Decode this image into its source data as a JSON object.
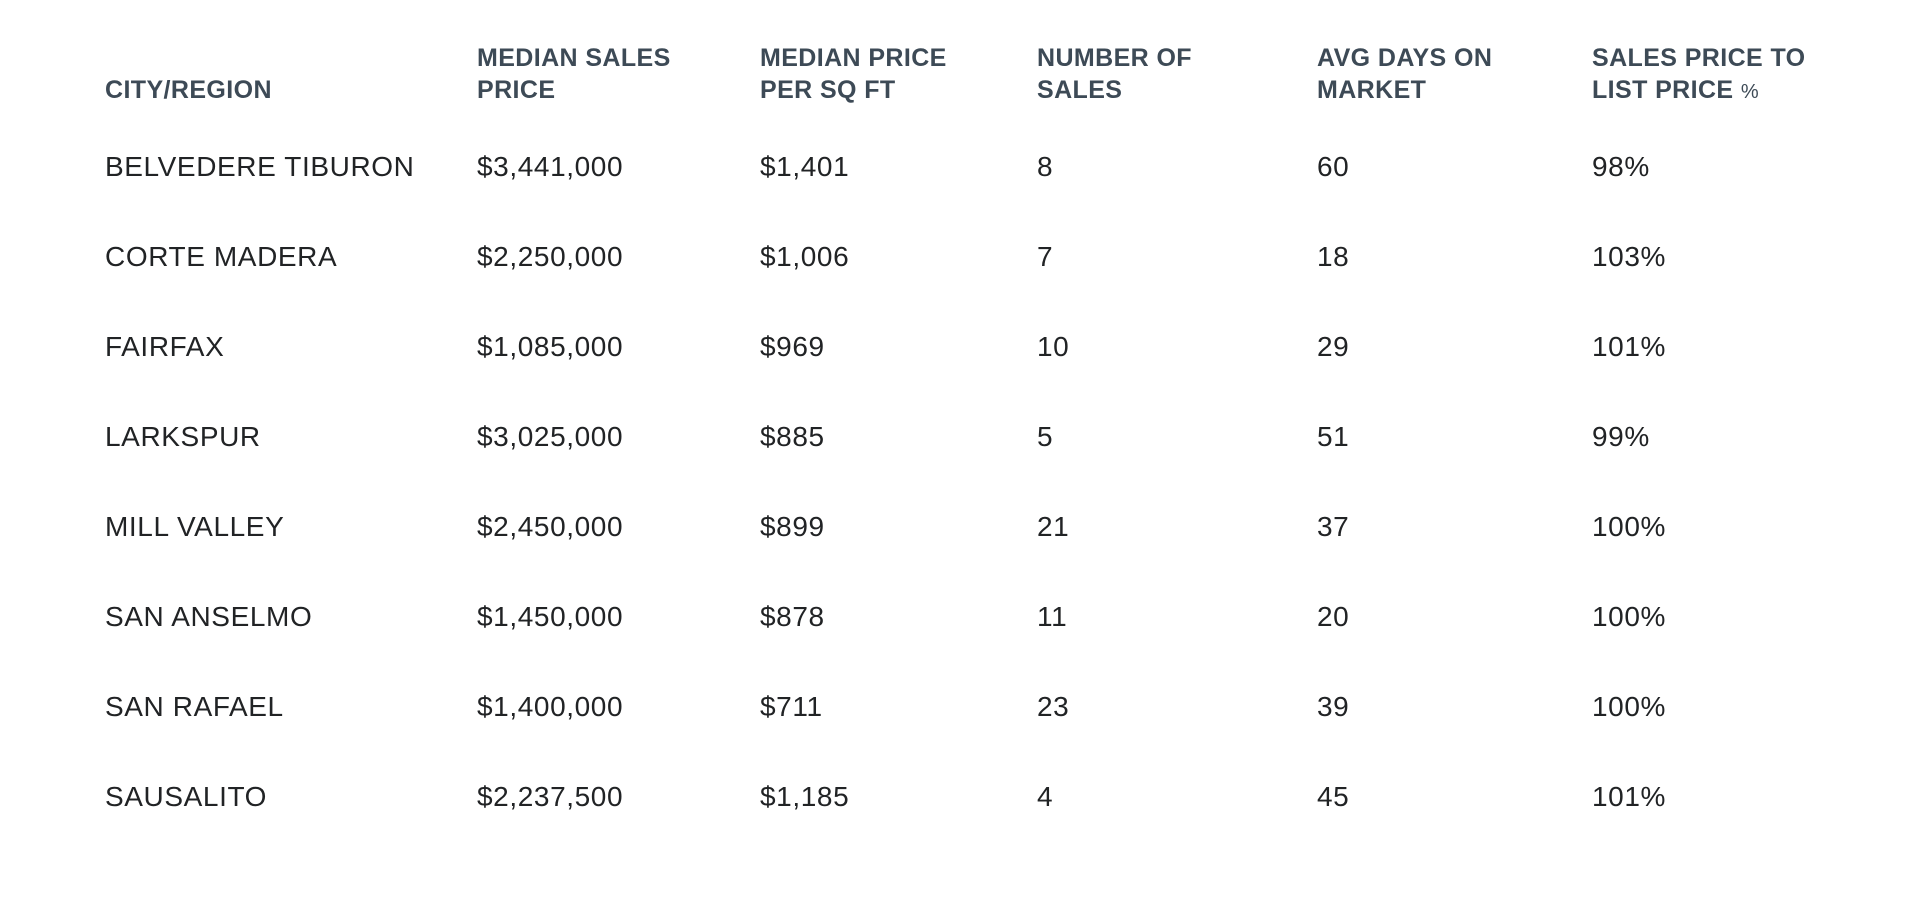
{
  "colors": {
    "background": "#ffffff",
    "header_text": "#3d4a56",
    "body_text": "#212325"
  },
  "table": {
    "columns": [
      {
        "label": "CITY/REGION"
      },
      {
        "label": "MEDIAN SALES PRICE"
      },
      {
        "label": "MEDIAN PRICE PER SQ FT"
      },
      {
        "label": "NUMBER OF SALES"
      },
      {
        "label": "AVG DAYS ON MARKET"
      },
      {
        "label": "SALES PRICE TO LIST PRICE",
        "label_suffix": "%"
      }
    ],
    "rows": [
      [
        "BELVEDERE TIBURON",
        "$3,441,000",
        "$1,401",
        "8",
        "60",
        "98%"
      ],
      [
        "CORTE MADERA",
        "$2,250,000",
        "$1,006",
        "7",
        "18",
        "103%"
      ],
      [
        "FAIRFAX",
        "$1,085,000",
        "$969",
        "10",
        "29",
        "101%"
      ],
      [
        "LARKSPUR",
        "$3,025,000",
        "$885",
        "5",
        "51",
        "99%"
      ],
      [
        "MILL VALLEY",
        "$2,450,000",
        "$899",
        "21",
        "37",
        "100%"
      ],
      [
        "SAN ANSELMO",
        "$1,450,000",
        "$878",
        "11",
        "20",
        "100%"
      ],
      [
        "SAN RAFAEL",
        "$1,400,000",
        "$711",
        "23",
        "39",
        "100%"
      ],
      [
        "SAUSALITO",
        "$2,237,500",
        "$1,185",
        "4",
        "45",
        "101%"
      ]
    ]
  }
}
